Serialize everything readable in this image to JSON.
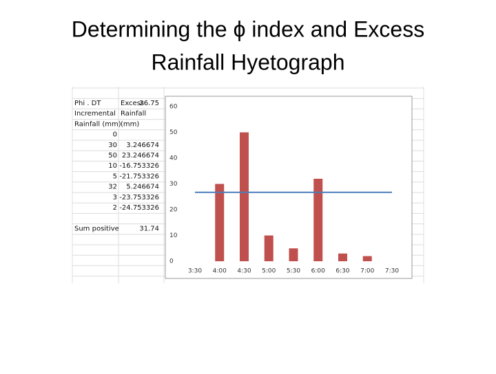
{
  "title": [
    "Determining the ϕ index and Excess",
    "Rainfall Hyetograph"
  ],
  "sheet": {
    "phi_dt": {
      "label": "Phi . DT",
      "value": 26.75
    },
    "headers": [
      [
        "Incremental",
        "Rainfall (mm)"
      ],
      [
        "Excess",
        "Rainfall",
        "(mm)"
      ]
    ],
    "rows": [
      [
        0,
        null
      ],
      [
        30,
        3.246674
      ],
      [
        50,
        23.246674
      ],
      [
        10,
        -16.753326
      ],
      [
        5,
        -21.753326
      ],
      [
        32,
        5.246674
      ],
      [
        3,
        -23.753326
      ],
      [
        2,
        -24.753326
      ]
    ],
    "sum_positive": {
      "label": "Sum positive",
      "value": 31.74
    }
  },
  "chart_data": {
    "type": "bar",
    "categories": [
      "3:30",
      "4:00",
      "4:30",
      "5:00",
      "5:30",
      "6:00",
      "6:30",
      "7:00",
      "7:30"
    ],
    "series": [
      {
        "color": "#c0504d",
        "values": [
          0,
          30,
          50,
          10,
          5,
          32,
          3,
          2,
          null
        ]
      }
    ],
    "hline": {
      "value": 26.75,
      "color": "#4a7ebb"
    },
    "ylim": [
      0,
      60
    ],
    "yticks": [
      0,
      10,
      20,
      30,
      40,
      50,
      60
    ],
    "grid": false
  }
}
